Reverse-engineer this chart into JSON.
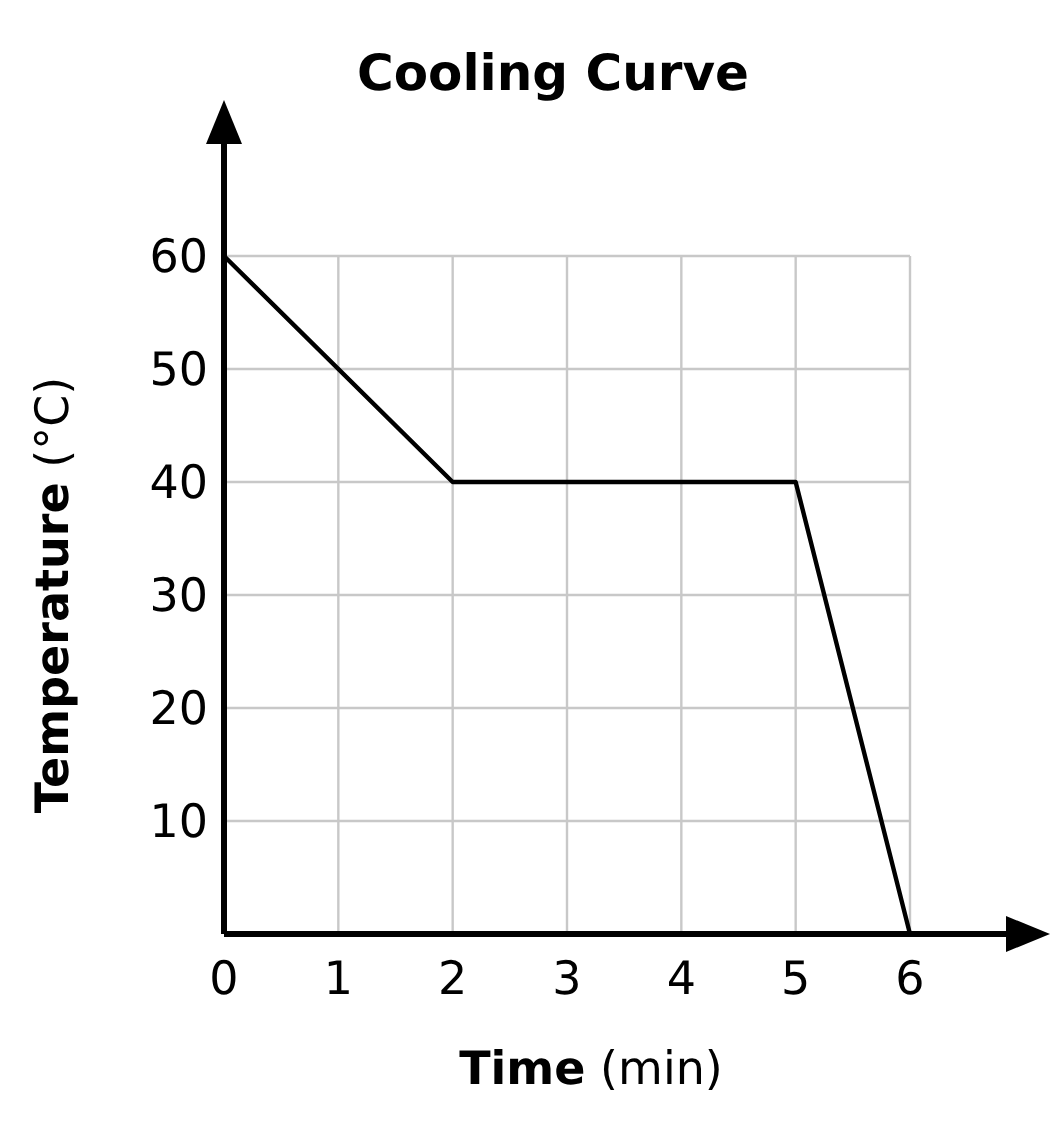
{
  "chart_data": {
    "type": "line",
    "title": "Cooling Curve",
    "xlabel": "Time (min)",
    "ylabel": "Temperature (°C)",
    "x": [
      0,
      2,
      5,
      6
    ],
    "series": [
      {
        "color": "#000000",
        "values": [
          60,
          40,
          40,
          0
        ]
      }
    ],
    "xlim": [
      0,
      6
    ],
    "ylim": [
      0,
      60
    ],
    "xticks": [
      0,
      1,
      2,
      3,
      4,
      5,
      6
    ],
    "yticks": [
      {
        "value": 0,
        "label": null
      },
      10,
      20,
      30,
      40,
      50,
      60
    ],
    "grid": true,
    "marker": "none",
    "line_style": "solid"
  }
}
